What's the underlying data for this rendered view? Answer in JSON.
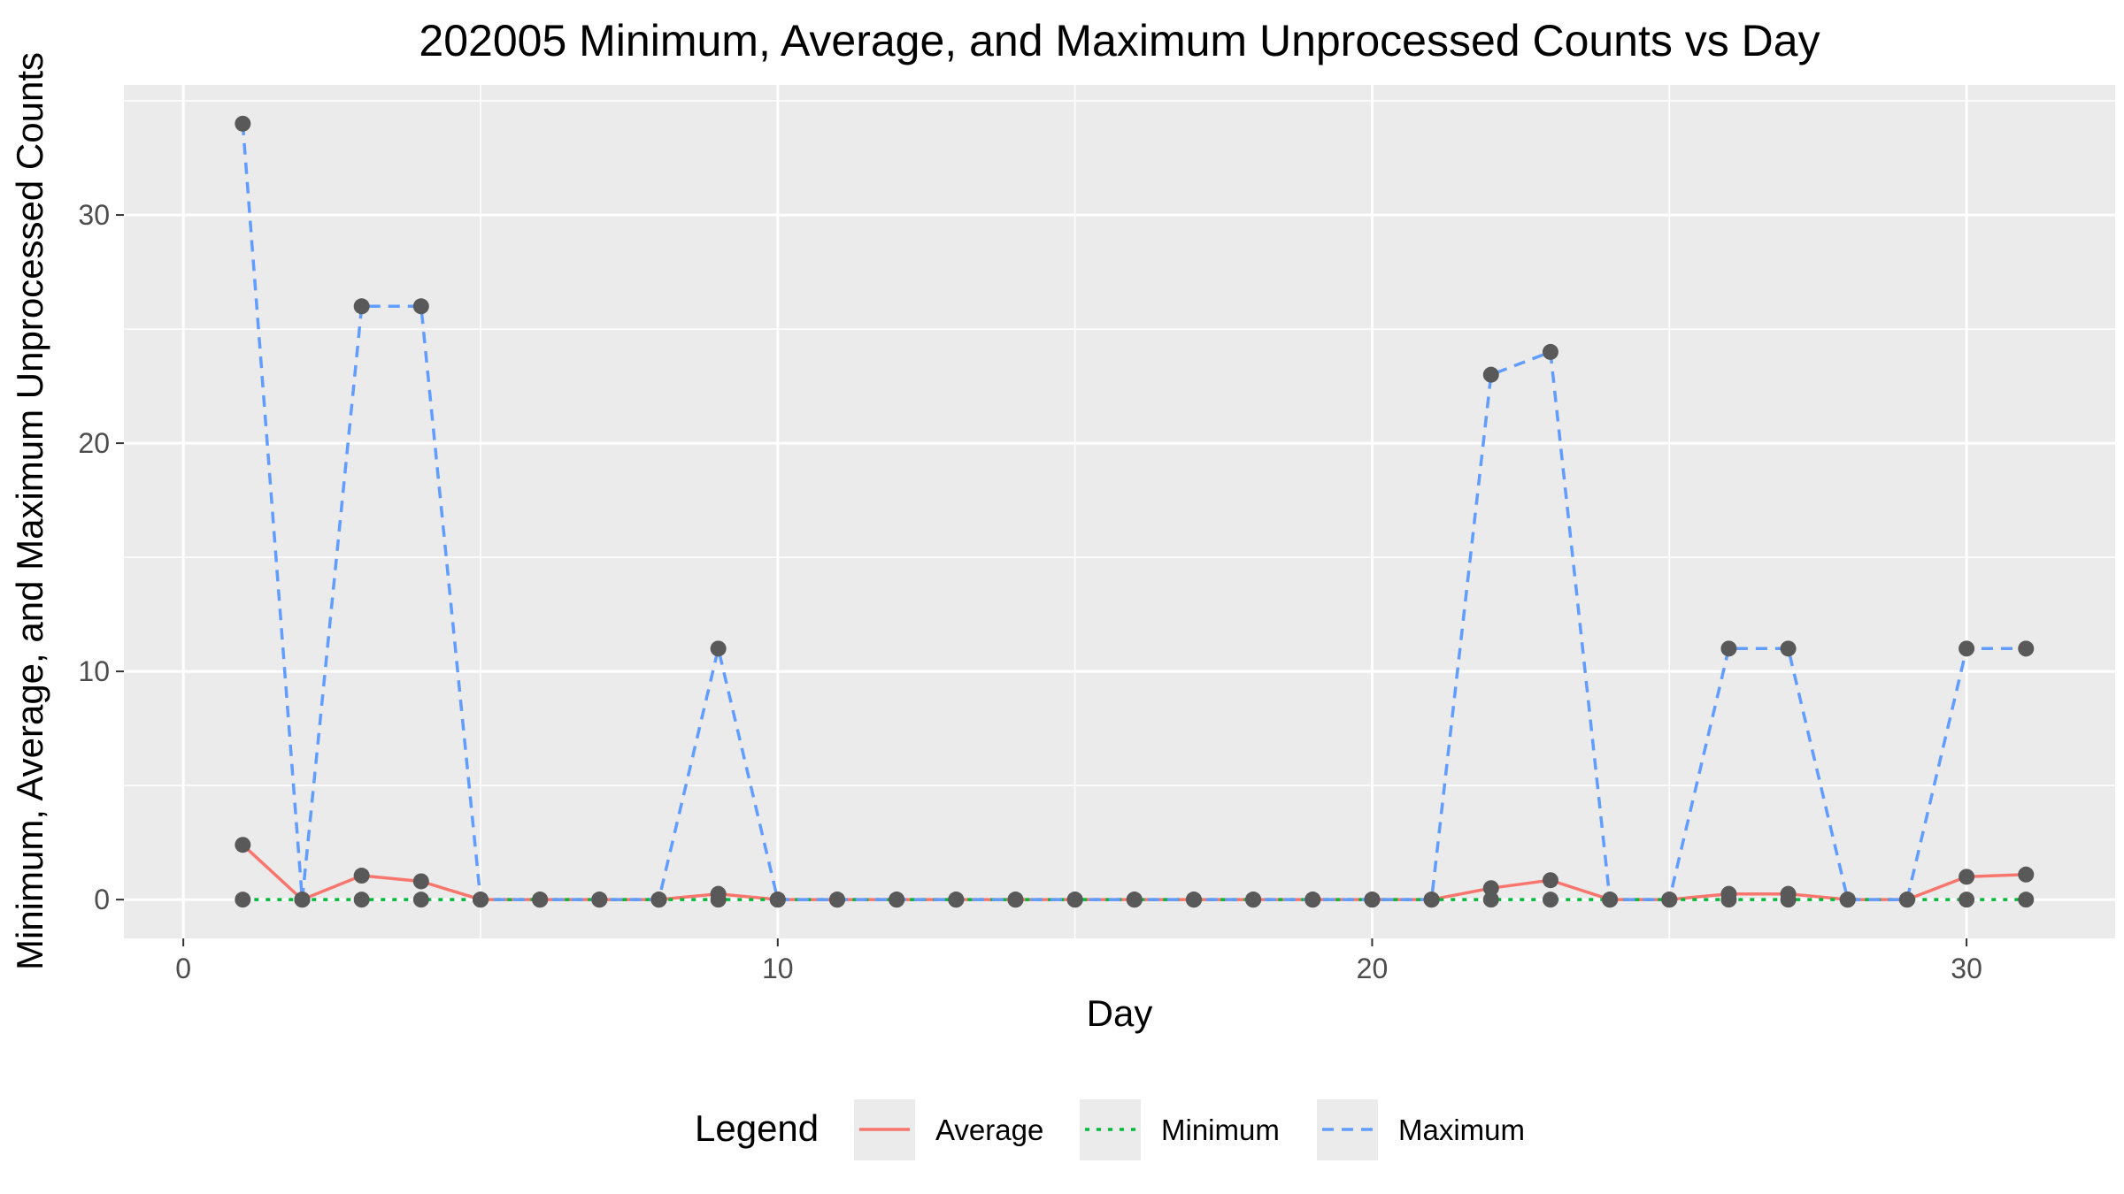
{
  "chart_data": {
    "type": "line",
    "title": "202005 Minimum, Average, and Maximum Unprocessed Counts vs Day",
    "xlabel": "Day",
    "ylabel": "Minimum, Average, and Maximum Unprocessed Counts",
    "xlim": [
      -1.0,
      32.5
    ],
    "ylim": [
      -1.7,
      35.7
    ],
    "x_ticks": [
      0,
      10,
      20,
      30
    ],
    "y_ticks": [
      0,
      10,
      20,
      30
    ],
    "grid": true,
    "legend_title": "Legend",
    "legend_position": "bottom",
    "x": [
      1,
      2,
      3,
      4,
      5,
      6,
      7,
      8,
      9,
      10,
      11,
      12,
      13,
      14,
      15,
      16,
      17,
      18,
      19,
      20,
      21,
      22,
      23,
      24,
      25,
      26,
      27,
      28,
      29,
      30,
      31
    ],
    "series": [
      {
        "name": "Average",
        "color": "#f8766d",
        "dash": "solid",
        "values": [
          2.4,
          0,
          1.05,
          0.8,
          0,
          0,
          0,
          0,
          0.25,
          0,
          0,
          0,
          0,
          0,
          0,
          0,
          0,
          0,
          0,
          0,
          0,
          0.5,
          0.85,
          0,
          0,
          0.25,
          0.25,
          0,
          0,
          1.0,
          1.1
        ]
      },
      {
        "name": "Minimum",
        "color": "#00ba38",
        "dash": "dotted",
        "values": [
          0,
          0,
          0,
          0,
          0,
          0,
          0,
          0,
          0,
          0,
          0,
          0,
          0,
          0,
          0,
          0,
          0,
          0,
          0,
          0,
          0,
          0,
          0,
          0,
          0,
          0,
          0,
          0,
          0,
          0,
          0
        ]
      },
      {
        "name": "Maximum",
        "color": "#619cff",
        "dash": "dashed",
        "values": [
          34,
          0,
          26,
          26,
          0,
          0,
          0,
          0,
          11,
          0,
          0,
          0,
          0,
          0,
          0,
          0,
          0,
          0,
          0,
          0,
          0,
          23,
          24,
          0,
          0,
          11,
          11,
          0,
          0,
          11,
          11
        ]
      }
    ]
  }
}
